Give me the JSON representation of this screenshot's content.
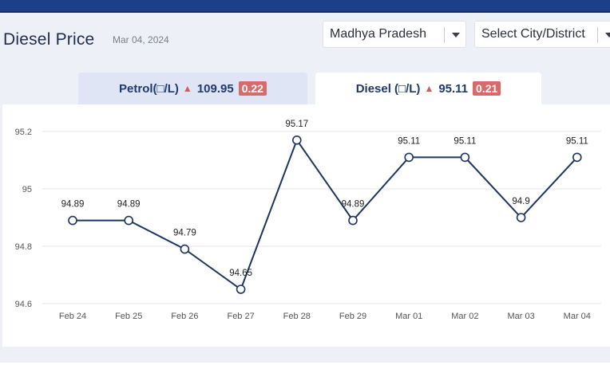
{
  "header": {
    "title": "Diesel Price",
    "date": "Mar 04, 2024"
  },
  "selects": {
    "state": "Madhya Pradesh",
    "city": "Select City/District"
  },
  "tabs": {
    "petrol": {
      "label": "Petrol(□/L)",
      "price": "109.95",
      "change": "0.22"
    },
    "diesel": {
      "label": "Diesel (□/L)",
      "price": "95.11",
      "change": "0.21"
    }
  },
  "colors": {
    "header_blue": "#1d3f8a",
    "line": "#1f3560",
    "up_arrow": "#d35b5b",
    "badge": "#d86a6a"
  },
  "chart_data": {
    "type": "line",
    "title": "",
    "xlabel": "",
    "ylabel": "",
    "categories": [
      "Feb 24",
      "Feb 25",
      "Feb 26",
      "Feb 27",
      "Feb 28",
      "Feb 29",
      "Mar 01",
      "Mar 02",
      "Mar 03",
      "Mar 04"
    ],
    "series": [
      {
        "values": [
          94.89,
          94.89,
          94.79,
          94.65,
          95.17,
          94.89,
          95.11,
          95.11,
          94.9,
          95.11
        ],
        "labels": [
          "94.89",
          "94.89",
          "94.79",
          "94.65",
          "95.17",
          "94.89",
          "95.11",
          "95.11",
          "94.9",
          "95.11"
        ]
      }
    ],
    "ylim": [
      94.6,
      95.2
    ],
    "yticks": [
      94.6,
      94.8,
      95,
      95.2
    ],
    "ytick_labels": [
      "94.6",
      "94.8",
      "95",
      "95.2"
    ],
    "grid": true,
    "legend": "none"
  }
}
